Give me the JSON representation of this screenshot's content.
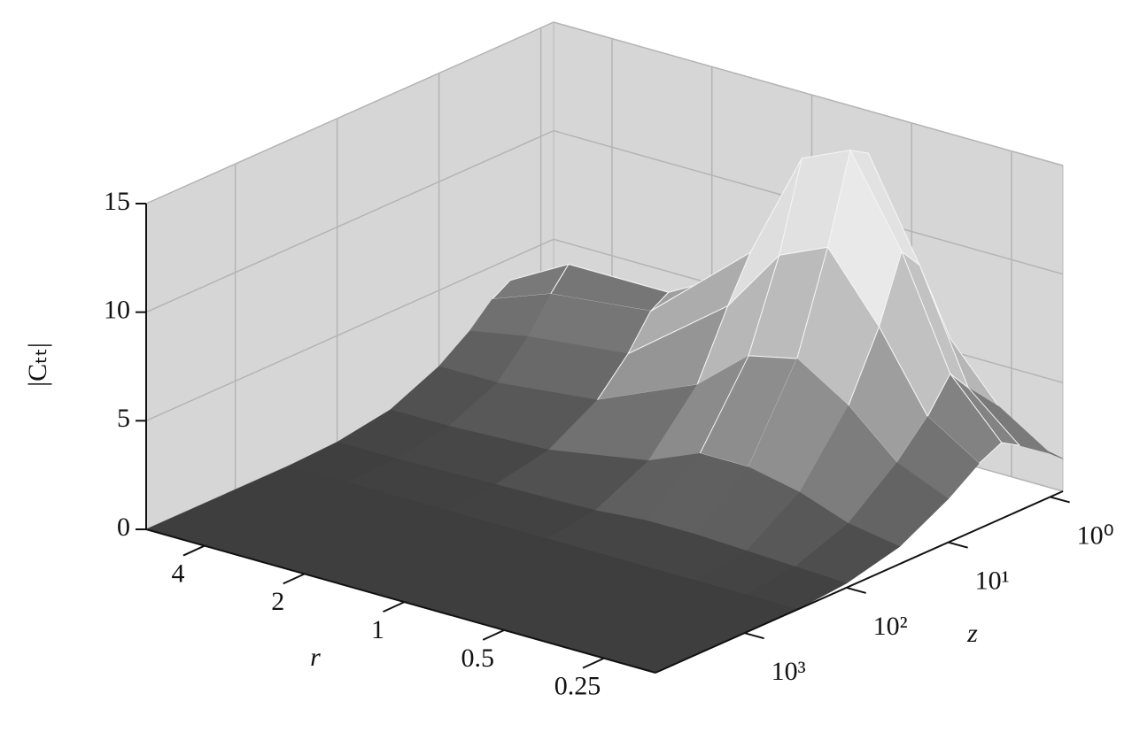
{
  "chart_data": {
    "type": "surface",
    "xlabel": "r",
    "ylabel": "z",
    "zlabel": "|Cₜₜ|",
    "x": [
      6,
      4,
      2,
      1,
      0.7,
      0.5,
      0.35,
      0.25,
      0.175
    ],
    "y": [
      7500,
      1000,
      300,
      100,
      30,
      10,
      5,
      3,
      2,
      1,
      0.75
    ],
    "values": [
      [
        0,
        0,
        0,
        0.1,
        0.5,
        1.5,
        2.5,
        3.5,
        4,
        3,
        2.5
      ],
      [
        0,
        0,
        0,
        0.1,
        0.5,
        1.5,
        3,
        4.5,
        5.5,
        4,
        3
      ],
      [
        0,
        0,
        0,
        0.2,
        0.7,
        2,
        3.5,
        5,
        5.5,
        4,
        3
      ],
      [
        0,
        0,
        0,
        0.3,
        1.5,
        4,
        7,
        9,
        8,
        5,
        3
      ],
      [
        0,
        0,
        0,
        0.5,
        2.5,
        6,
        10,
        14,
        13,
        7,
        3
      ],
      [
        0,
        0,
        0,
        0.5,
        2.5,
        6.5,
        11,
        15,
        14.5,
        8,
        3.5
      ],
      [
        0,
        0,
        0,
        0.4,
        2,
        5,
        8,
        11,
        10,
        6,
        3
      ],
      [
        0,
        0,
        0,
        0.3,
        1.2,
        3,
        4.5,
        6,
        5,
        3.5,
        2
      ],
      [
        0,
        0,
        0,
        0.2,
        0.8,
        2,
        3,
        3.5,
        3,
        2,
        1.5
      ]
    ],
    "xlim": [
      6,
      0.175
    ],
    "xticks": [
      4,
      2,
      1,
      0.5,
      0.25
    ],
    "xscale": "log",
    "ylim": [
      7500,
      0.75
    ],
    "yticks": [
      {
        "value": 1000,
        "label": "10³"
      },
      {
        "value": 100,
        "label": "10²"
      },
      {
        "value": 10,
        "label": "10¹"
      },
      {
        "value": 1,
        "label": "10⁰"
      }
    ],
    "yscale": "log",
    "zlim": [
      0,
      15
    ],
    "zticks": [
      0,
      5,
      10,
      15
    ],
    "grid": true
  }
}
